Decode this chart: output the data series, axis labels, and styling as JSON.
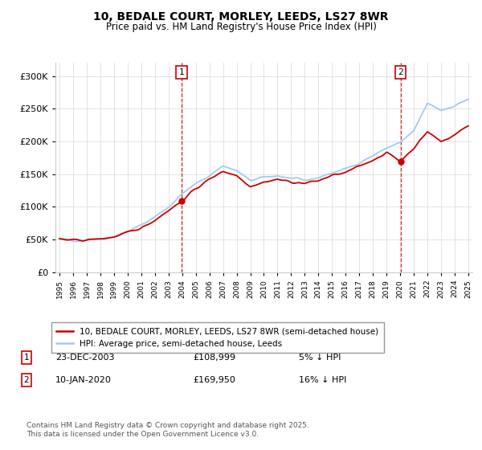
{
  "title_line1": "10, BEDALE COURT, MORLEY, LEEDS, LS27 8WR",
  "title_line2": "Price paid vs. HM Land Registry's House Price Index (HPI)",
  "ylim": [
    0,
    320000
  ],
  "yticks": [
    0,
    50000,
    100000,
    150000,
    200000,
    250000,
    300000
  ],
  "ytick_labels": [
    "£0",
    "£50K",
    "£100K",
    "£150K",
    "£200K",
    "£250K",
    "£300K"
  ],
  "hpi_color": "#a8c8f0",
  "price_color": "#cc0000",
  "annotation1_date": "23-DEC-2003",
  "annotation1_price": "£108,999",
  "annotation1_hpi": "5% ↓ HPI",
  "annotation2_date": "10-JAN-2020",
  "annotation2_price": "£169,950",
  "annotation2_hpi": "16% ↓ HPI",
  "legend_line1": "10, BEDALE COURT, MORLEY, LEEDS, LS27 8WR (semi-detached house)",
  "legend_line2": "HPI: Average price, semi-detached house, Leeds",
  "footnote": "Contains HM Land Registry data © Crown copyright and database right 2025.\nThis data is licensed under the Open Government Licence v3.0.",
  "xstart_year": 1995,
  "xend_year": 2025,
  "hpi_anchors_x": [
    1995,
    1996,
    1997,
    1998,
    1999,
    2000,
    2001,
    2002,
    2003,
    2004,
    2005,
    2006,
    2007,
    2008,
    2009,
    2010,
    2011,
    2012,
    2013,
    2014,
    2015,
    2016,
    2017,
    2018,
    2019,
    2020,
    2021,
    2022,
    2023,
    2024,
    2025
  ],
  "hpi_anchors_y": [
    50000,
    49000,
    50000,
    52000,
    55000,
    62000,
    72000,
    85000,
    100000,
    120000,
    135000,
    148000,
    163000,
    155000,
    140000,
    145000,
    148000,
    143000,
    140000,
    145000,
    152000,
    158000,
    168000,
    178000,
    190000,
    198000,
    215000,
    258000,
    248000,
    255000,
    265000
  ],
  "price_anchors_x": [
    1995,
    1996,
    1997,
    1998,
    1999,
    2000,
    2001,
    2002,
    2003,
    2004,
    2005,
    2006,
    2007,
    2008,
    2009,
    2010,
    2011,
    2012,
    2013,
    2014,
    2015,
    2016,
    2017,
    2018,
    2019,
    2020,
    2021,
    2022,
    2023,
    2024,
    2025
  ],
  "price_anchors_y": [
    50000,
    48500,
    49500,
    51000,
    54000,
    60000,
    68000,
    80000,
    95000,
    109000,
    128000,
    142000,
    155000,
    148000,
    132000,
    138000,
    142000,
    138000,
    136000,
    140000,
    148000,
    152000,
    162000,
    172000,
    183000,
    170000,
    190000,
    215000,
    200000,
    210000,
    225000
  ],
  "dot1_year": 2003.95,
  "dot1_price": 108999,
  "dot2_year": 2020.03,
  "dot2_price": 169950
}
